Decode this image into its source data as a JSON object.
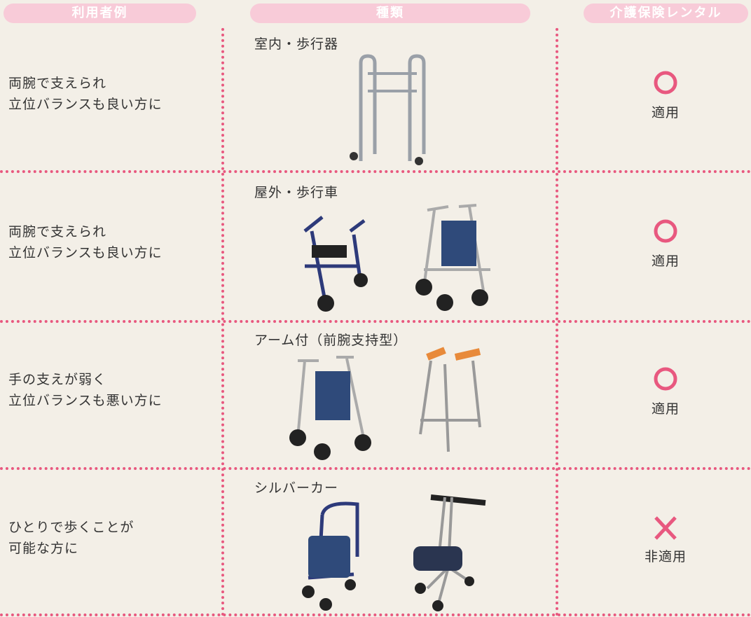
{
  "header": [
    "利用者例",
    "種類",
    "介護保険レンタル"
  ],
  "rows": [
    {
      "user": [
        "両腕で支えられ",
        "立位バランスも良い方に"
      ],
      "type": "室内・歩行器",
      "rental": "適用"
    },
    {
      "user": [
        "両腕で支えられ",
        "立位バランスも良い方に"
      ],
      "type": "屋外・歩行車",
      "rental": "適用"
    },
    {
      "user": [
        "手の支えが弱く",
        "立位バランスも悪い方に"
      ],
      "type": "アーム付（前腕支持型）",
      "rental": "適用"
    },
    {
      "user": [
        "ひとりで歩くことが",
        "可能な方に"
      ],
      "type": "シルバーカー",
      "rental": "非適用"
    }
  ]
}
